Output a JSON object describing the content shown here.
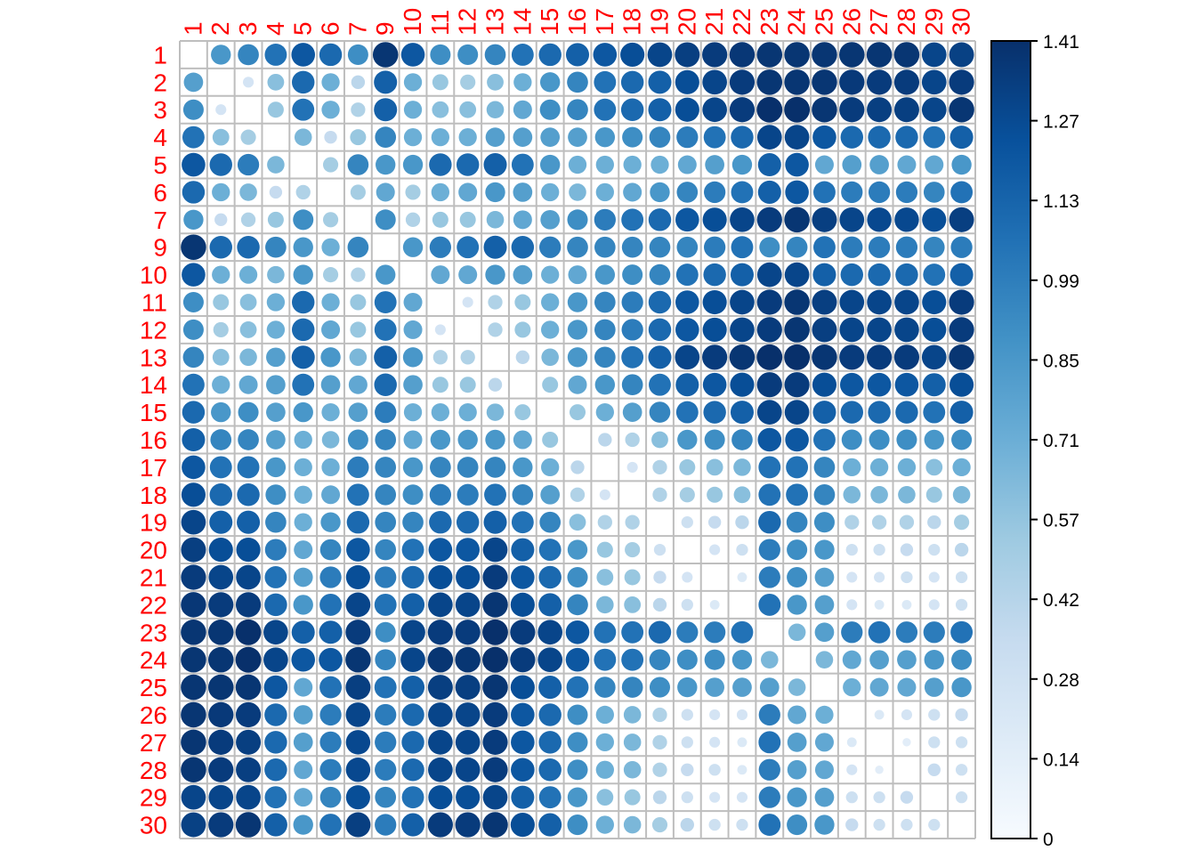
{
  "chart_data": {
    "type": "heatmap",
    "style": "corrplot-circles",
    "title": "",
    "labels": [
      "1",
      "2",
      "3",
      "4",
      "5",
      "6",
      "7",
      "9",
      "10",
      "11",
      "12",
      "13",
      "14",
      "15",
      "16",
      "17",
      "18",
      "19",
      "20",
      "21",
      "22",
      "23",
      "24",
      "25",
      "26",
      "27",
      "28",
      "29",
      "30"
    ],
    "label_color": "#ff0000",
    "grid": true,
    "grid_color": "#bebebe",
    "diagonal": "blank",
    "colorbar": {
      "placement": "right",
      "range": [
        0,
        1.41
      ],
      "tick_labels": [
        "0",
        "0.14",
        "0.28",
        "0.42",
        "0.57",
        "0.71",
        "0.85",
        "0.99",
        "1.13",
        "1.27",
        "1.41"
      ],
      "colors": [
        "#f7fbff",
        "#deebf7",
        "#c6dbef",
        "#9ecae1",
        "#6baed6",
        "#4292c6",
        "#2171b5",
        "#08519c",
        "#08306b"
      ]
    },
    "matrix": [
      [
        0,
        0.85,
        0.95,
        1.05,
        1.2,
        1.1,
        0.9,
        1.38,
        1.2,
        0.9,
        0.9,
        0.95,
        1.05,
        1.1,
        1.15,
        1.2,
        1.25,
        1.3,
        1.33,
        1.35,
        1.37,
        1.38,
        1.38,
        1.38,
        1.38,
        1.38,
        1.38,
        1.3,
        1.32
      ],
      [
        0.8,
        0,
        0.25,
        0.6,
        1.1,
        0.7,
        0.4,
        1.15,
        0.7,
        0.55,
        0.5,
        0.6,
        0.7,
        0.85,
        0.95,
        1.05,
        1.1,
        1.15,
        1.25,
        1.3,
        1.35,
        1.38,
        1.38,
        1.38,
        1.36,
        1.35,
        1.35,
        1.3,
        1.35
      ],
      [
        0.9,
        0.25,
        0,
        0.55,
        1.05,
        0.7,
        0.45,
        1.15,
        0.7,
        0.6,
        0.6,
        0.65,
        0.75,
        0.9,
        0.95,
        1.05,
        1.1,
        1.15,
        1.25,
        1.3,
        1.35,
        1.41,
        1.41,
        1.38,
        1.35,
        1.33,
        1.33,
        1.3,
        1.38
      ],
      [
        1.05,
        0.6,
        0.5,
        0,
        0.65,
        0.35,
        0.55,
        0.95,
        0.7,
        0.7,
        0.7,
        0.8,
        0.8,
        0.8,
        0.8,
        0.85,
        0.9,
        0.95,
        1.0,
        1.05,
        1.1,
        1.3,
        1.3,
        1.2,
        1.1,
        1.1,
        1.1,
        1.05,
        1.15
      ],
      [
        1.2,
        1.1,
        1.0,
        0.65,
        0,
        0.5,
        0.95,
        0.85,
        0.85,
        1.1,
        1.1,
        1.15,
        1.05,
        0.85,
        0.7,
        0.7,
        0.7,
        0.7,
        0.75,
        0.8,
        0.85,
        1.15,
        1.2,
        0.75,
        0.8,
        0.8,
        0.75,
        0.75,
        0.85
      ],
      [
        1.1,
        0.7,
        0.65,
        0.35,
        0.45,
        0,
        0.5,
        0.75,
        0.5,
        0.7,
        0.75,
        0.85,
        0.8,
        0.7,
        0.65,
        0.7,
        0.75,
        0.85,
        0.95,
        1.0,
        1.05,
        1.15,
        1.2,
        1.05,
        1.0,
        1.0,
        1.0,
        0.95,
        1.05
      ],
      [
        0.85,
        0.35,
        0.45,
        0.55,
        0.9,
        0.5,
        0,
        0.9,
        0.45,
        0.55,
        0.55,
        0.65,
        0.75,
        0.8,
        0.9,
        1.0,
        1.05,
        1.1,
        1.2,
        1.25,
        1.3,
        1.35,
        1.38,
        1.33,
        1.3,
        1.28,
        1.28,
        1.25,
        1.33
      ],
      [
        1.38,
        1.1,
        1.1,
        0.95,
        0.85,
        0.7,
        0.95,
        0,
        0.85,
        1.0,
        1.05,
        1.15,
        1.1,
        1.0,
        0.95,
        0.95,
        0.95,
        0.95,
        0.95,
        1.0,
        1.05,
        0.9,
        0.95,
        1.05,
        1.0,
        1.0,
        1.0,
        0.95,
        1.0
      ],
      [
        1.2,
        0.7,
        0.7,
        0.65,
        0.85,
        0.5,
        0.45,
        0.85,
        0,
        0.75,
        0.75,
        0.85,
        0.8,
        0.7,
        0.75,
        0.85,
        0.9,
        0.95,
        1.05,
        1.1,
        1.15,
        1.3,
        1.3,
        1.15,
        1.1,
        1.1,
        1.1,
        1.05,
        1.15
      ],
      [
        0.9,
        0.55,
        0.6,
        0.7,
        1.1,
        0.7,
        0.55,
        1.05,
        0.75,
        0,
        0.25,
        0.45,
        0.55,
        0.7,
        0.85,
        0.95,
        1.0,
        1.1,
        1.2,
        1.25,
        1.3,
        1.35,
        1.38,
        1.33,
        1.3,
        1.3,
        1.3,
        1.25,
        1.35
      ],
      [
        0.9,
        0.5,
        0.6,
        0.7,
        1.1,
        0.75,
        0.55,
        1.05,
        0.75,
        0.25,
        0,
        0.45,
        0.55,
        0.7,
        0.85,
        0.95,
        1.0,
        1.1,
        1.2,
        1.25,
        1.3,
        1.35,
        1.38,
        1.33,
        1.3,
        1.3,
        1.3,
        1.25,
        1.35
      ],
      [
        0.95,
        0.6,
        0.65,
        0.8,
        1.15,
        0.85,
        0.65,
        1.15,
        0.85,
        0.45,
        0.45,
        0,
        0.4,
        0.65,
        0.85,
        0.95,
        1.05,
        1.15,
        1.3,
        1.35,
        1.38,
        1.41,
        1.41,
        1.38,
        1.35,
        1.35,
        1.35,
        1.3,
        1.38
      ],
      [
        1.05,
        0.7,
        0.75,
        0.8,
        1.05,
        0.8,
        0.75,
        1.1,
        0.8,
        0.55,
        0.55,
        0.4,
        0,
        0.55,
        0.75,
        0.85,
        0.95,
        1.05,
        1.15,
        1.2,
        1.25,
        1.35,
        1.35,
        1.25,
        1.2,
        1.2,
        1.2,
        1.15,
        1.25
      ],
      [
        1.1,
        0.85,
        0.9,
        0.8,
        0.85,
        0.7,
        0.8,
        1.0,
        0.7,
        0.7,
        0.7,
        0.65,
        0.55,
        0,
        0.55,
        0.7,
        0.8,
        0.95,
        1.05,
        1.1,
        1.15,
        1.3,
        1.3,
        1.15,
        1.1,
        1.1,
        1.1,
        1.05,
        1.15
      ],
      [
        1.15,
        0.95,
        0.95,
        0.8,
        0.7,
        0.65,
        0.9,
        0.95,
        0.75,
        0.85,
        0.85,
        0.85,
        0.75,
        0.55,
        0,
        0.4,
        0.45,
        0.6,
        0.85,
        0.9,
        0.95,
        1.2,
        1.2,
        1.05,
        0.9,
        0.9,
        0.9,
        0.85,
        0.9
      ],
      [
        1.2,
        1.05,
        1.05,
        0.85,
        0.7,
        0.7,
        1.0,
        0.95,
        0.85,
        0.95,
        0.95,
        0.95,
        0.85,
        0.7,
        0.4,
        0,
        0.25,
        0.45,
        0.55,
        0.6,
        0.65,
        1.05,
        1.05,
        0.95,
        0.7,
        0.7,
        0.7,
        0.6,
        0.7
      ],
      [
        1.25,
        1.1,
        1.1,
        0.9,
        0.7,
        0.75,
        1.05,
        0.95,
        0.9,
        1.0,
        1.0,
        1.05,
        0.95,
        0.8,
        0.45,
        0.25,
        0,
        0.45,
        0.5,
        0.55,
        0.6,
        1.05,
        1.05,
        0.95,
        0.65,
        0.65,
        0.65,
        0.55,
        0.65
      ],
      [
        1.3,
        1.15,
        1.15,
        0.95,
        0.7,
        0.85,
        1.1,
        0.95,
        0.95,
        1.1,
        1.1,
        1.15,
        1.05,
        0.95,
        0.6,
        0.45,
        0.45,
        0,
        0.3,
        0.35,
        0.4,
        1.1,
        0.95,
        0.9,
        0.45,
        0.45,
        0.45,
        0.4,
        0.5
      ],
      [
        1.33,
        1.25,
        1.25,
        1.0,
        0.75,
        0.95,
        1.2,
        0.95,
        1.05,
        1.2,
        1.2,
        1.3,
        1.15,
        1.05,
        0.85,
        0.55,
        0.5,
        0.3,
        0,
        0.25,
        0.3,
        1.0,
        0.9,
        0.85,
        0.3,
        0.3,
        0.35,
        0.3,
        0.4
      ],
      [
        1.35,
        1.3,
        1.3,
        1.05,
        0.8,
        1.0,
        1.25,
        1.0,
        1.1,
        1.25,
        1.25,
        1.35,
        1.2,
        1.1,
        0.9,
        0.6,
        0.55,
        0.35,
        0.25,
        0,
        0.2,
        1.0,
        0.9,
        0.8,
        0.25,
        0.25,
        0.3,
        0.25,
        0.3
      ],
      [
        1.37,
        1.35,
        1.35,
        1.1,
        0.85,
        1.05,
        1.3,
        1.05,
        1.15,
        1.3,
        1.3,
        1.38,
        1.25,
        1.15,
        0.95,
        0.65,
        0.6,
        0.4,
        0.3,
        0.2,
        0,
        1.05,
        0.85,
        0.8,
        0.25,
        0.2,
        0.2,
        0.25,
        0.3
      ],
      [
        1.38,
        1.38,
        1.41,
        1.3,
        1.15,
        1.15,
        1.35,
        0.9,
        1.3,
        1.35,
        1.35,
        1.41,
        1.35,
        1.3,
        1.2,
        1.05,
        1.05,
        1.1,
        1.0,
        1.0,
        1.05,
        0,
        0.65,
        0.8,
        1.0,
        1.05,
        1.0,
        1.0,
        1.05
      ],
      [
        1.38,
        1.38,
        1.41,
        1.3,
        1.2,
        1.2,
        1.38,
        0.95,
        1.3,
        1.38,
        1.38,
        1.41,
        1.35,
        1.3,
        1.2,
        1.05,
        1.05,
        0.95,
        0.9,
        0.9,
        0.85,
        0.65,
        0,
        0.65,
        0.75,
        0.8,
        0.8,
        0.85,
        0.9
      ],
      [
        1.38,
        1.38,
        1.38,
        1.2,
        0.75,
        1.05,
        1.33,
        1.05,
        1.15,
        1.33,
        1.33,
        1.38,
        1.25,
        1.15,
        1.05,
        0.95,
        0.95,
        0.9,
        0.85,
        0.8,
        0.8,
        0.8,
        0.65,
        0,
        0.7,
        0.75,
        0.75,
        0.8,
        0.85
      ],
      [
        1.38,
        1.36,
        1.35,
        1.1,
        0.8,
        1.0,
        1.3,
        1.0,
        1.1,
        1.3,
        1.3,
        1.35,
        1.2,
        1.1,
        0.9,
        0.7,
        0.65,
        0.45,
        0.3,
        0.25,
        0.25,
        1.0,
        0.75,
        0.7,
        0,
        0.2,
        0.25,
        0.3,
        0.35
      ],
      [
        1.38,
        1.35,
        1.33,
        1.1,
        0.8,
        1.0,
        1.28,
        1.0,
        1.1,
        1.3,
        1.3,
        1.35,
        1.2,
        1.1,
        0.9,
        0.7,
        0.65,
        0.45,
        0.3,
        0.25,
        0.2,
        1.05,
        0.8,
        0.75,
        0.2,
        0,
        0.15,
        0.3,
        0.3
      ],
      [
        1.38,
        1.35,
        1.33,
        1.1,
        0.75,
        1.0,
        1.28,
        1.0,
        1.1,
        1.3,
        1.3,
        1.35,
        1.2,
        1.1,
        0.9,
        0.7,
        0.65,
        0.45,
        0.35,
        0.3,
        0.2,
        1.0,
        0.8,
        0.75,
        0.25,
        0.15,
        0,
        0.35,
        0.3
      ],
      [
        1.3,
        1.3,
        1.3,
        1.05,
        0.75,
        0.95,
        1.25,
        0.95,
        1.05,
        1.25,
        1.25,
        1.3,
        1.15,
        1.05,
        0.85,
        0.6,
        0.55,
        0.4,
        0.3,
        0.25,
        0.25,
        1.0,
        0.85,
        0.8,
        0.3,
        0.3,
        0.35,
        0,
        0.3
      ],
      [
        1.32,
        1.35,
        1.38,
        1.15,
        0.85,
        1.05,
        1.33,
        1.0,
        1.15,
        1.35,
        1.35,
        1.38,
        1.25,
        1.15,
        0.9,
        0.7,
        0.65,
        0.5,
        0.4,
        0.3,
        0.3,
        1.05,
        0.9,
        0.85,
        0.35,
        0.3,
        0.3,
        0.3,
        0
      ]
    ]
  }
}
